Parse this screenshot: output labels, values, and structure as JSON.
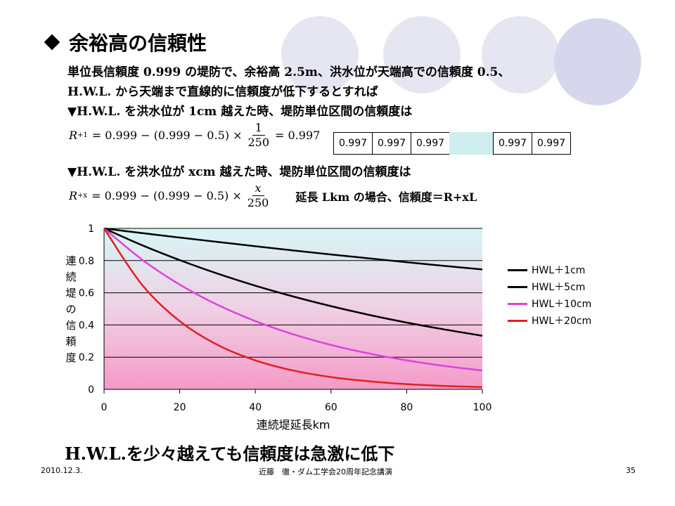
{
  "title": "余裕高の信頼性",
  "intro_line1": "単位長信頼度 0.999 の堤防で、余裕高 2.5m、洪水位が天端高での信頼度 0.5、",
  "intro_line2": "H.W.L. から天端まで直線的に信頼度が低下するとすれば",
  "case1_heading": "▼H.W.L. を洪水位が 1cm 越えた時、堤防単位区間の信頼度は",
  "formula1": {
    "lhs": "R",
    "lhs_sub": "+1",
    "expr": "= 0.999 − (0.999 − 0.5) ×",
    "num": "1",
    "den": "250",
    "result": "= 0.997"
  },
  "cells": [
    "0.997",
    "0.997",
    "0.997",
    "0.997",
    "0.997"
  ],
  "case2_heading": "▼H.W.L. を洪水位が xcm 越えた時、堤防単位区間の信頼度は",
  "formula2": {
    "lhs": "R",
    "lhs_sub": "+x",
    "expr": "= 0.999 − (0.999 − 0.5) ×",
    "num": "x",
    "den": "250",
    "note": "延長 Lkm の場合、信頼度＝R+xL"
  },
  "chart_data": {
    "type": "line",
    "xlabel": "連続堤延長km",
    "ylabel": "連続堤の信頼度",
    "xlim": [
      0,
      100
    ],
    "ylim": [
      0,
      1
    ],
    "xticks": [
      "0",
      "20",
      "40",
      "60",
      "80",
      "100"
    ],
    "yticks": [
      "0",
      "0.2",
      "0.4",
      "0.6",
      "0.8",
      "1"
    ],
    "x": [
      0,
      10,
      20,
      30,
      40,
      50,
      60,
      70,
      80,
      90,
      100
    ],
    "series": [
      {
        "name": "HWL＋1cm",
        "color": "#000000",
        "values": [
          1.0,
          0.971,
          0.943,
          0.916,
          0.889,
          0.863,
          0.838,
          0.814,
          0.79,
          0.767,
          0.745
        ]
      },
      {
        "name": "HWL＋5cm",
        "color": "#000000",
        "values": [
          1.0,
          0.896,
          0.803,
          0.719,
          0.644,
          0.577,
          0.517,
          0.463,
          0.415,
          0.372,
          0.333
        ]
      },
      {
        "name": "HWL＋10cm",
        "color": "#e040e0",
        "values": [
          1.0,
          0.807,
          0.651,
          0.525,
          0.424,
          0.342,
          0.276,
          0.223,
          0.18,
          0.145,
          0.117
        ]
      },
      {
        "name": "HWL＋20cm",
        "color": "#e02020",
        "values": [
          1.0,
          0.651,
          0.424,
          0.276,
          0.18,
          0.117,
          0.076,
          0.05,
          0.032,
          0.021,
          0.014
        ]
      }
    ]
  },
  "conclusion": "H.W.L.を少々越えても信頼度は急激に低下",
  "footer": {
    "date": "2010.12.3.",
    "center": "近藤　徹・ダム工学会20周年記念講演",
    "page": "35"
  }
}
